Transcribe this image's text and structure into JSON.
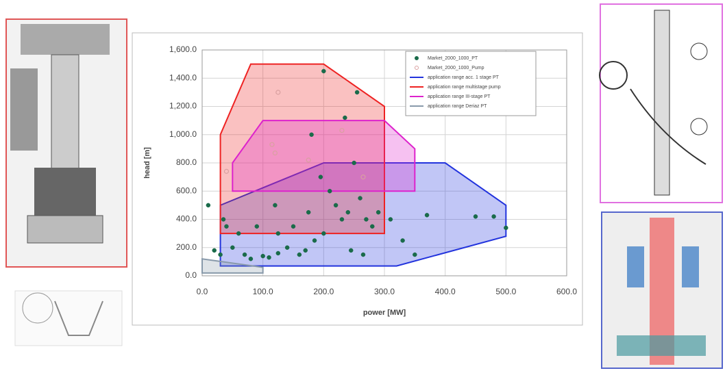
{
  "chart_data": {
    "type": "scatter",
    "x_label": "power [MW]",
    "y_label": "head [m]",
    "xlim": [
      0,
      600
    ],
    "ylim": [
      0,
      1600
    ],
    "xticks": [
      {
        "value": 0,
        "label": "0.0"
      },
      {
        "value": 100,
        "label": "100.0"
      },
      {
        "value": 200,
        "label": "200.0"
      },
      {
        "value": 300,
        "label": "300.0"
      },
      {
        "value": 400,
        "label": "400.0"
      },
      {
        "value": 500,
        "label": "500.0"
      },
      {
        "value": 600,
        "label": "600.0"
      }
    ],
    "yticks": [
      {
        "value": 0,
        "label": "0.0"
      },
      {
        "value": 200,
        "label": "200.0"
      },
      {
        "value": 400,
        "label": "400.0"
      },
      {
        "value": 600,
        "label": "600.0"
      },
      {
        "value": 800,
        "label": "800.0"
      },
      {
        "value": 1000,
        "label": "1,000.0"
      },
      {
        "value": 1200,
        "label": "1,200.0"
      },
      {
        "value": 1400,
        "label": "1,400.0"
      },
      {
        "value": 1600,
        "label": "1,600.0"
      }
    ],
    "grid": true,
    "legend": "top-right",
    "series": [
      {
        "name": "Market_2000_1000_PT",
        "kind": "points",
        "color": "#1a6b4a",
        "filled": true,
        "x": [
          10,
          20,
          30,
          35,
          40,
          50,
          60,
          70,
          80,
          90,
          100,
          110,
          120,
          125,
          140,
          150,
          160,
          170,
          180,
          185,
          195,
          200,
          200,
          210,
          220,
          230,
          240,
          245,
          250,
          255,
          260,
          265,
          270,
          280,
          290,
          310,
          330,
          350,
          370,
          450,
          480,
          500,
          235,
          175,
          125
        ],
        "y": [
          500,
          180,
          150,
          400,
          350,
          200,
          300,
          150,
          120,
          350,
          140,
          130,
          500,
          300,
          200,
          350,
          150,
          180,
          1000,
          250,
          700,
          1450,
          300,
          600,
          500,
          400,
          450,
          180,
          800,
          1300,
          550,
          150,
          400,
          350,
          450,
          400,
          250,
          150,
          430,
          420,
          420,
          340,
          1120,
          450,
          160
        ]
      },
      {
        "name": "Market_2000_1000_Pump",
        "kind": "points",
        "color": "#d9a0a0",
        "filled": false,
        "x": [
          40,
          125,
          115,
          230,
          175,
          265,
          120
        ],
        "y": [
          740,
          1300,
          930,
          1030,
          820,
          700,
          870
        ]
      },
      {
        "name": "application range acc. 1 stage PT",
        "kind": "area",
        "color": "#2233dd",
        "x": [
          30,
          30,
          200,
          400,
          500,
          500,
          320,
          30
        ],
        "y": [
          300,
          500,
          800,
          800,
          500,
          280,
          70,
          70
        ]
      },
      {
        "name": "application range multistage pump",
        "kind": "area",
        "color": "#ee2222",
        "x": [
          30,
          30,
          80,
          200,
          300,
          300
        ],
        "y": [
          300,
          1000,
          1500,
          1500,
          1200,
          300
        ]
      },
      {
        "name": "application range III-stage PT",
        "kind": "area",
        "color": "#dd22cc",
        "x": [
          50,
          50,
          100,
          300,
          350,
          350
        ],
        "y": [
          600,
          800,
          1100,
          1100,
          900,
          600
        ]
      },
      {
        "name": "application range Deriaz PT",
        "kind": "area",
        "color": "#8899aa",
        "x": [
          0,
          0,
          100,
          100
        ],
        "y": [
          120,
          20,
          20,
          60
        ]
      }
    ]
  }
}
